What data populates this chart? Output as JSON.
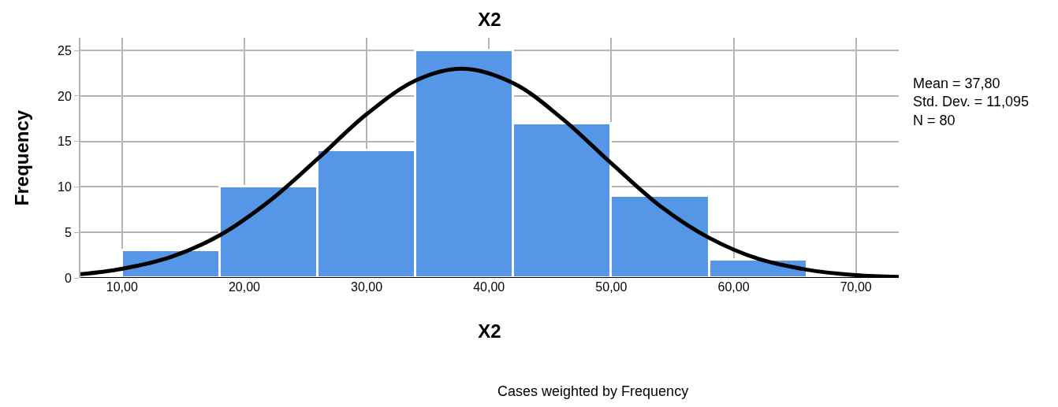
{
  "chart_data": {
    "type": "histogram",
    "title": "X2",
    "xlabel": "X2",
    "ylabel": "Frequency",
    "bins": [
      10,
      18,
      26,
      34,
      42,
      50,
      58,
      66
    ],
    "values": [
      3,
      10,
      14,
      25,
      17,
      9,
      2
    ],
    "color": "#5596e6",
    "series": [
      {
        "type": "line",
        "color": "#000000",
        "x": [
          6.6,
          10,
          14,
          18,
          22,
          26,
          30,
          34,
          37.8,
          42,
          46,
          50,
          54,
          58,
          62,
          66,
          70,
          73.5
        ],
        "values": [
          0.4,
          1.0,
          2.3,
          4.7,
          8.4,
          13.1,
          18.0,
          21.7,
          23.0,
          21.4,
          17.5,
          12.6,
          7.9,
          4.4,
          2.1,
          0.9,
          0.3,
          0.1
        ]
      }
    ],
    "xlim": [
      6.6,
      73.5
    ],
    "ylim": [
      0,
      26.4
    ],
    "xticks": [
      {
        "value": 10,
        "label": "10,00"
      },
      {
        "value": 20,
        "label": "20,00"
      },
      {
        "value": 30,
        "label": "30,00"
      },
      {
        "value": 40,
        "label": "40,00"
      },
      {
        "value": 50,
        "label": "50,00"
      },
      {
        "value": 60,
        "label": "60,00"
      },
      {
        "value": 70,
        "label": "70,00"
      }
    ],
    "yticks": [
      0,
      5,
      10,
      15,
      20,
      25
    ],
    "grid": true,
    "annotations": [
      "Mean = 37,80\nStd. Dev. = 11,095\nN = 80",
      "Cases weighted by Frequency"
    ]
  }
}
